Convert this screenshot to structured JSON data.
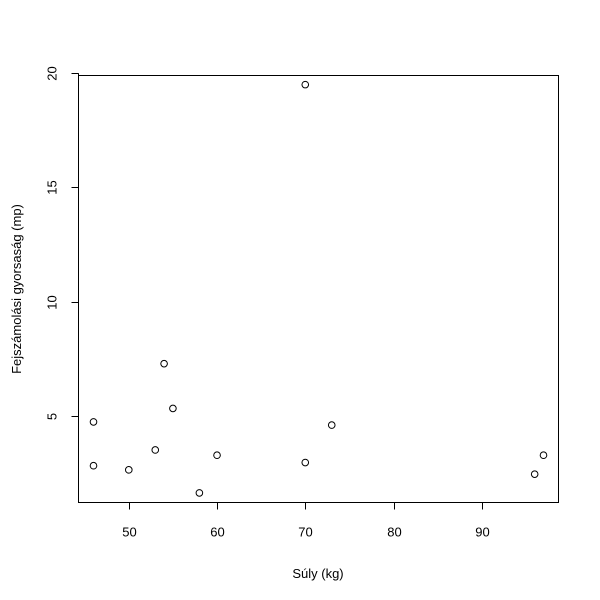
{
  "chart_data": {
    "type": "scatter",
    "title": "",
    "xlabel": "Súly (kg)",
    "ylabel": "Fejszámolási gyorsaság (mp)",
    "xlim": [
      44.3,
      98.7
    ],
    "ylim": [
      1.2,
      19.9
    ],
    "xticks": [
      50,
      60,
      70,
      80,
      90
    ],
    "yticks": [
      5,
      10,
      15,
      20
    ],
    "grid": false,
    "marker": "open-circle",
    "color": "#000000",
    "points": [
      {
        "x": 46,
        "y": 4.73
      },
      {
        "x": 46,
        "y": 2.81
      },
      {
        "x": 50,
        "y": 2.63
      },
      {
        "x": 53,
        "y": 3.5
      },
      {
        "x": 54,
        "y": 7.28
      },
      {
        "x": 55,
        "y": 5.32
      },
      {
        "x": 58,
        "y": 1.62
      },
      {
        "x": 60,
        "y": 3.27
      },
      {
        "x": 70,
        "y": 19.5
      },
      {
        "x": 70,
        "y": 2.95
      },
      {
        "x": 73,
        "y": 4.59
      },
      {
        "x": 96,
        "y": 2.44
      },
      {
        "x": 97,
        "y": 3.27
      }
    ]
  }
}
